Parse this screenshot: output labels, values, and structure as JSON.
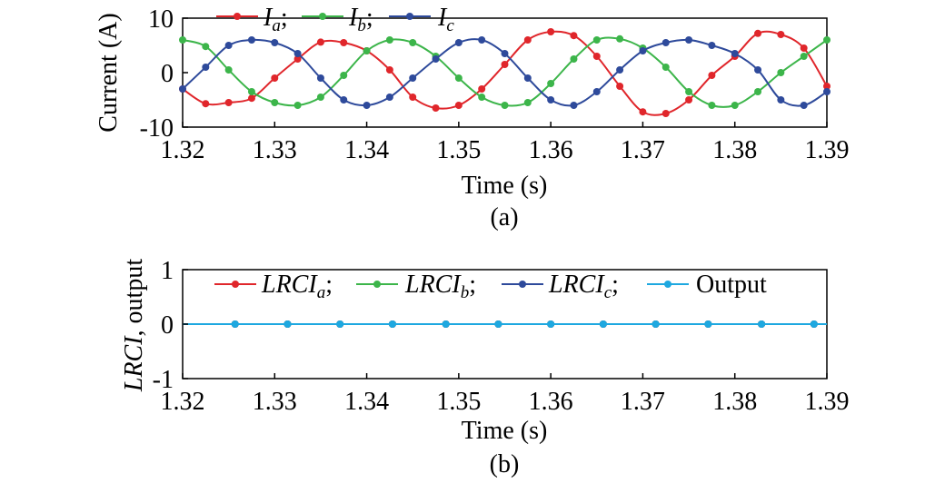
{
  "colors": {
    "Ia": "#e0262b",
    "Ib": "#3cb54a",
    "Ic": "#2e4a9b",
    "Output": "#1ea8e0",
    "axis": "#000000"
  },
  "chart_data": [
    {
      "type": "line",
      "caption": "(a)",
      "xlabel": "Time (s)",
      "ylabel": "Current (A)",
      "xlim": [
        1.32,
        1.39
      ],
      "ylim": [
        -10,
        10
      ],
      "xticks": [
        "1.32",
        "1.33",
        "1.34",
        "1.35",
        "1.36",
        "1.37",
        "1.38",
        "1.39"
      ],
      "yticks": [
        "10",
        "0",
        "-10"
      ],
      "legend_position": "top-left",
      "x": [
        1.32,
        1.3225,
        1.325,
        1.3275,
        1.33,
        1.3325,
        1.335,
        1.3375,
        1.34,
        1.3425,
        1.345,
        1.3475,
        1.35,
        1.3525,
        1.355,
        1.3575,
        1.36,
        1.3625,
        1.365,
        1.3675,
        1.37,
        1.3725,
        1.375,
        1.3775,
        1.38,
        1.3825,
        1.385,
        1.3875,
        1.39
      ],
      "series": [
        {
          "name": "Ia",
          "color_key": "Ia",
          "values": [
            -3.0,
            -5.7,
            -5.5,
            -4.7,
            -1.0,
            2.5,
            5.6,
            5.5,
            4.0,
            0.5,
            -4.5,
            -6.5,
            -6.0,
            -3.0,
            1.5,
            6.0,
            7.5,
            6.8,
            3.0,
            -2.5,
            -7.2,
            -7.5,
            -5.0,
            -0.5,
            3.0,
            7.2,
            7.0,
            4.5,
            -2.5
          ]
        },
        {
          "name": "Ib",
          "color_key": "Ib",
          "values": [
            6.0,
            4.8,
            0.5,
            -3.5,
            -5.5,
            -6.0,
            -4.5,
            -0.5,
            4.0,
            6.0,
            5.5,
            3.0,
            -1.0,
            -4.5,
            -6.0,
            -5.5,
            -2.0,
            2.5,
            6.0,
            6.2,
            4.5,
            1.0,
            -3.5,
            -6.0,
            -6.0,
            -3.5,
            0.0,
            3.0,
            6.0
          ]
        },
        {
          "name": "Ic",
          "color_key": "Ic",
          "values": [
            -3.0,
            1.0,
            5.0,
            6.0,
            5.5,
            3.5,
            -1.0,
            -5.0,
            -6.0,
            -4.5,
            -1.0,
            2.5,
            5.5,
            6.0,
            3.5,
            -1.0,
            -5.0,
            -6.0,
            -3.5,
            0.5,
            4.0,
            5.5,
            6.0,
            5.0,
            3.5,
            0.5,
            -5.0,
            -6.0,
            -3.5
          ]
        }
      ]
    },
    {
      "type": "line",
      "caption": "(b)",
      "xlabel": "Time (s)",
      "ylabel": "LRCI, output",
      "xlim": [
        1.32,
        1.39
      ],
      "ylim": [
        -1,
        1
      ],
      "xticks": [
        "1.32",
        "1.33",
        "1.34",
        "1.35",
        "1.36",
        "1.37",
        "1.38",
        "1.39"
      ],
      "yticks": [
        "1",
        "0",
        "-1"
      ],
      "legend_position": "top",
      "x": [
        1.32,
        1.3257,
        1.3314,
        1.3371,
        1.3428,
        1.3486,
        1.3543,
        1.36,
        1.3657,
        1.3714,
        1.3771,
        1.3829,
        1.3886,
        1.39
      ],
      "series": [
        {
          "name": "LRCIa",
          "color_key": "Ia",
          "values": [
            0,
            0,
            0,
            0,
            0,
            0,
            0,
            0,
            0,
            0,
            0,
            0,
            0,
            0
          ]
        },
        {
          "name": "LRCIb",
          "color_key": "Ib",
          "values": [
            0,
            0,
            0,
            0,
            0,
            0,
            0,
            0,
            0,
            0,
            0,
            0,
            0,
            0
          ]
        },
        {
          "name": "LRCIc",
          "color_key": "Ic",
          "values": [
            0,
            0,
            0,
            0,
            0,
            0,
            0,
            0,
            0,
            0,
            0,
            0,
            0,
            0
          ]
        },
        {
          "name": "Output",
          "color_key": "Output",
          "values": [
            0,
            0,
            0,
            0,
            0,
            0,
            0,
            0,
            0,
            0,
            0,
            0,
            0,
            0
          ]
        }
      ]
    }
  ]
}
